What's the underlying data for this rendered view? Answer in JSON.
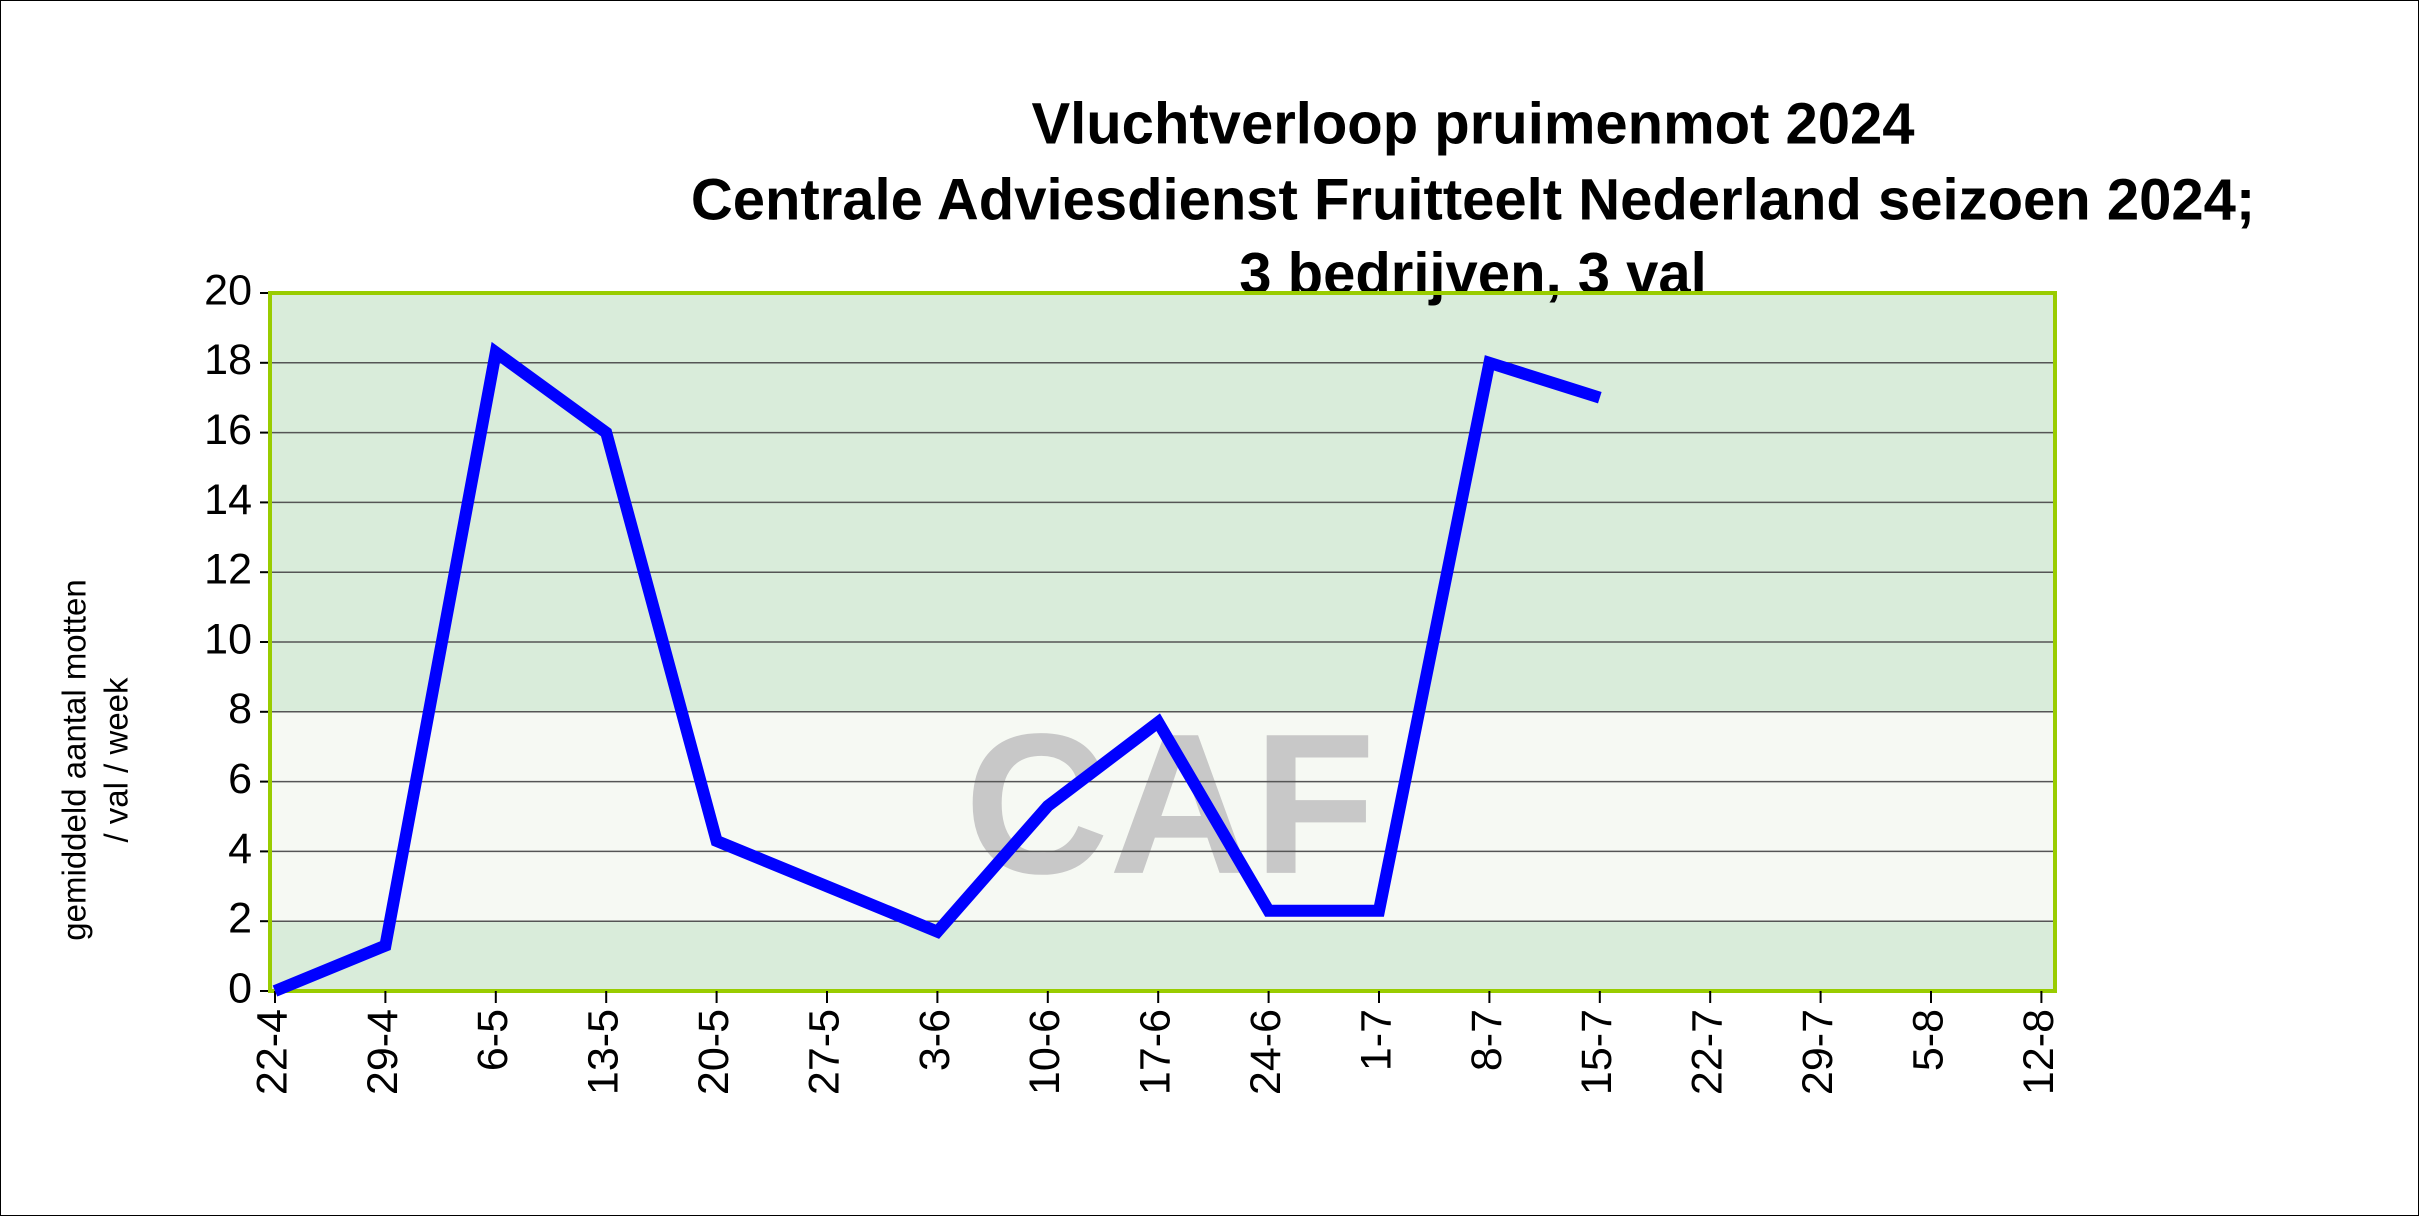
{
  "chart_data": {
    "type": "line",
    "title": [
      "Vluchtverloop pruimenmot 2024",
      "Centrale Adviesdienst Fruitteelt Nederland seizoen 2024;",
      "3 bedrijven, 3 val"
    ],
    "y_label": [
      "gemiddeld aantal motten",
      "/ val / week"
    ],
    "watermark": "CAF",
    "categories": [
      "22-4",
      "29-4",
      "6-5",
      "13-5",
      "20-5",
      "27-5",
      "3-6",
      "10-6",
      "17-6",
      "24-6",
      "1-7",
      "8-7",
      "15-7",
      "22-7",
      "29-7",
      "5-8",
      "12-8"
    ],
    "series": [
      {
        "color": "#0000ff",
        "values": [
          0,
          1.3,
          18.3,
          16,
          4.3,
          3.0,
          1.7,
          5.3,
          7.7,
          2.3,
          2.3,
          18,
          17,
          null,
          null,
          null,
          null
        ]
      }
    ],
    "ylim": [
      0,
      20
    ],
    "yticks": [
      0,
      2,
      4,
      6,
      8,
      10,
      12,
      14,
      16,
      18,
      20
    ],
    "grid": true
  }
}
